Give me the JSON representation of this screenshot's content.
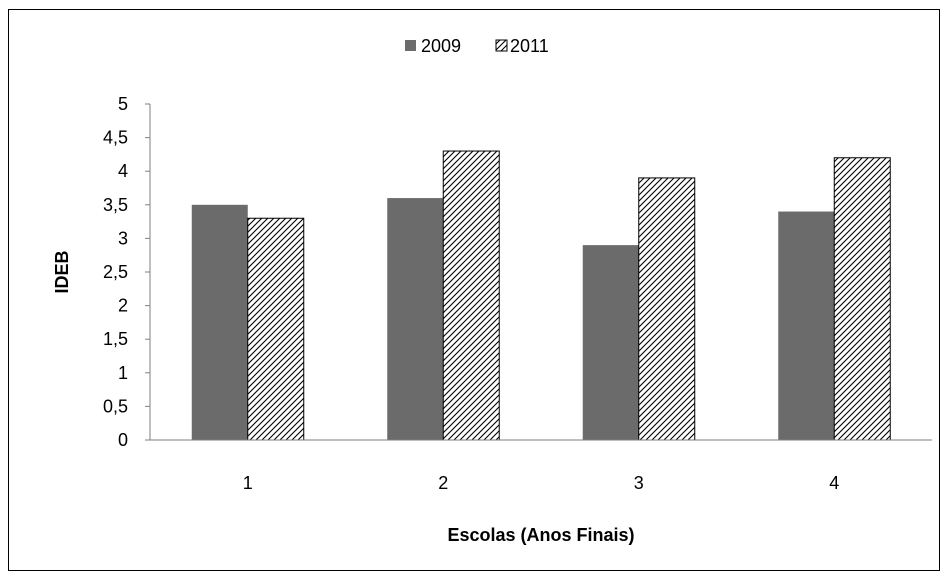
{
  "chart_data": {
    "type": "bar",
    "title": "",
    "xlabel": "Escolas (Anos Finais)",
    "ylabel": "IDEB",
    "categories": [
      "1",
      "2",
      "3",
      "4"
    ],
    "ylim": [
      0,
      5
    ],
    "yticks": [
      "0",
      "0,5",
      "1",
      "1,5",
      "2",
      "2,5",
      "3",
      "3,5",
      "4",
      "4,5",
      "5"
    ],
    "grid": false,
    "legend_position": "top-center",
    "series": [
      {
        "name": "2009",
        "values": [
          3.5,
          3.6,
          2.9,
          3.4
        ],
        "color": "#6b6b6b",
        "fill": "solid"
      },
      {
        "name": "2011",
        "values": [
          3.3,
          4.3,
          3.9,
          4.2
        ],
        "color": "#000000",
        "fill": "diagonal-hatch"
      }
    ]
  }
}
